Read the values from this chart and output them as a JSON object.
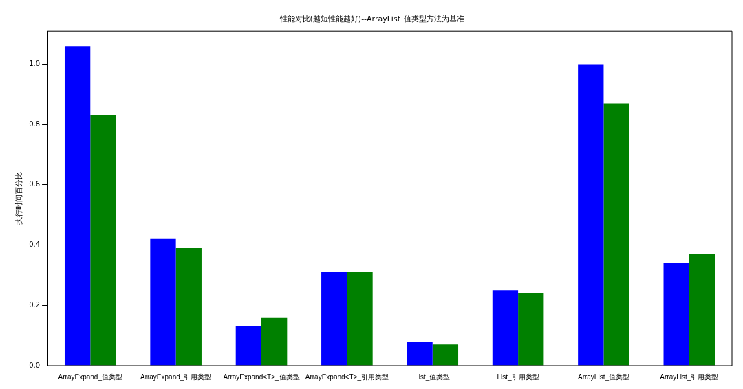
{
  "chart_data": {
    "type": "bar",
    "title": "性能对比(越短性能越好)--ArrayList_值类型方法为基准",
    "ylabel": "执行时间百分比",
    "categories": [
      "ArrayExpand_值类型",
      "ArrayExpand_引用类型",
      "ArrayExpand<T>_值类型",
      "ArrayExpand<T>_引用类型",
      "List_值类型",
      "List_引用类型",
      "ArrayList_值类型",
      "ArrayList_引用类型"
    ],
    "series": [
      {
        "color": "#0000ff",
        "values": [
          1.06,
          0.42,
          0.13,
          0.31,
          0.08,
          0.25,
          1.0,
          0.34
        ]
      },
      {
        "color": "#008000",
        "values": [
          0.83,
          0.39,
          0.16,
          0.31,
          0.07,
          0.24,
          0.87,
          0.37
        ]
      }
    ],
    "ylim": [
      0,
      1.11
    ],
    "yticks": [
      {
        "value": 0,
        "label": "0.0"
      },
      {
        "value": 0.2,
        "label": "0.2"
      },
      {
        "value": 0.4,
        "label": "0.4"
      },
      {
        "value": 0.6,
        "label": "0.6"
      },
      {
        "value": 0.8,
        "label": "0.8"
      },
      {
        "value": 1,
        "label": "1.0"
      }
    ],
    "grid": false
  }
}
